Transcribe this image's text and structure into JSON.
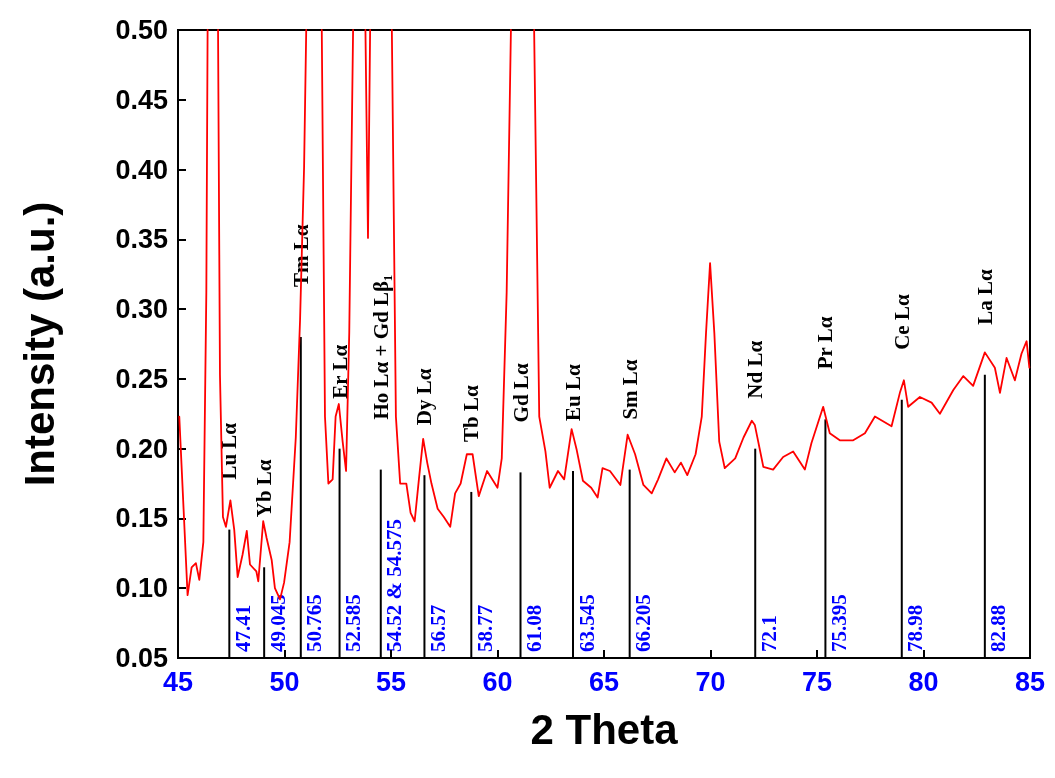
{
  "chart_data": {
    "type": "line",
    "xlabel": "2 Theta",
    "ylabel": "Intensity (a.u.)",
    "xlim": [
      45,
      85
    ],
    "xticks": [
      45,
      50,
      55,
      60,
      65,
      70,
      75,
      80,
      85
    ],
    "ylim": [
      0.05,
      0.5
    ],
    "yticks": [
      {
        "value": 0.05,
        "label": "0.05"
      },
      {
        "value": 0.1,
        "label": "0.10"
      },
      {
        "value": 0.15,
        "label": "0.15"
      },
      {
        "value": 0.2,
        "label": "0.20"
      },
      {
        "value": 0.25,
        "label": "0.25"
      },
      {
        "value": 0.3,
        "label": "0.30"
      },
      {
        "value": 0.35,
        "label": "0.35"
      },
      {
        "value": 0.4,
        "label": "0.40"
      },
      {
        "value": 0.45,
        "label": "0.45"
      },
      {
        "value": 0.5,
        "label": "0.50"
      }
    ],
    "marker": "none",
    "series": [
      {
        "color": "#ff0000",
        "x": [
          45.06,
          45.45,
          45.64,
          45.84,
          46.0,
          46.19,
          46.33,
          46.39,
          46.6,
          46.88,
          46.97,
          47.11,
          47.25,
          47.46,
          47.64,
          47.8,
          48.03,
          48.23,
          48.38,
          48.68,
          48.77,
          49.0,
          49.16,
          49.4,
          49.55,
          49.79,
          49.98,
          50.24,
          50.53,
          50.73,
          50.92,
          51.02,
          51.4,
          51.75,
          51.9,
          52.06,
          52.26,
          52.4,
          52.55,
          52.73,
          52.89,
          53.04,
          53.22,
          53.5,
          53.8,
          53.92,
          54.02,
          54.5,
          55.04,
          55.23,
          55.43,
          55.72,
          55.92,
          56.11,
          56.31,
          56.51,
          56.7,
          56.9,
          57.19,
          57.48,
          57.78,
          58.01,
          58.27,
          58.56,
          58.83,
          59.12,
          59.51,
          60.0,
          60.2,
          60.43,
          60.63,
          61.2,
          61.72,
          61.96,
          62.25,
          62.45,
          62.84,
          63.13,
          63.48,
          63.72,
          64.01,
          64.4,
          64.7,
          64.93,
          65.28,
          65.77,
          66.11,
          66.46,
          66.85,
          67.24,
          67.54,
          67.93,
          68.32,
          68.61,
          68.91,
          69.3,
          69.59,
          69.79,
          69.98,
          70.18,
          70.41,
          70.67,
          71.16,
          71.55,
          71.94,
          72.08,
          72.48,
          72.94,
          73.41,
          73.88,
          74.43,
          74.74,
          75.29,
          75.6,
          76.07,
          76.7,
          77.25,
          77.72,
          78.5,
          78.89,
          79.08,
          79.28,
          79.83,
          80.38,
          80.77,
          81.4,
          81.87,
          82.33,
          82.88,
          83.35,
          83.59,
          83.9,
          84.29,
          84.6,
          84.84,
          84.97
        ],
        "values": [
          0.223,
          0.095,
          0.115,
          0.118,
          0.106,
          0.133,
          0.312,
          0.5,
          null,
          0.5,
          0.253,
          0.151,
          0.144,
          0.163,
          0.142,
          0.108,
          0.124,
          0.141,
          0.117,
          0.112,
          0.105,
          0.148,
          0.136,
          0.12,
          0.1,
          0.092,
          0.104,
          0.133,
          0.208,
          0.292,
          0.402,
          0.5,
          null,
          0.5,
          0.223,
          0.175,
          0.178,
          0.223,
          0.232,
          0.205,
          0.184,
          0.283,
          0.5,
          null,
          0.5,
          0.351,
          0.5,
          null,
          0.5,
          0.223,
          0.175,
          0.175,
          0.154,
          0.148,
          0.178,
          0.207,
          0.19,
          0.175,
          0.157,
          0.151,
          0.144,
          0.168,
          0.175,
          0.196,
          0.196,
          0.166,
          0.184,
          0.172,
          0.193,
          0.312,
          0.5,
          null,
          0.5,
          0.223,
          0.198,
          0.172,
          0.184,
          0.178,
          0.214,
          0.199,
          0.177,
          0.172,
          0.165,
          0.186,
          0.184,
          0.174,
          0.21,
          0.196,
          0.174,
          0.168,
          0.178,
          0.193,
          0.183,
          0.19,
          0.181,
          0.196,
          0.223,
          0.283,
          0.333,
          0.283,
          0.205,
          0.186,
          0.193,
          0.208,
          0.22,
          0.217,
          0.187,
          0.185,
          0.194,
          0.198,
          0.185,
          0.204,
          0.23,
          0.211,
          0.206,
          0.206,
          0.211,
          0.223,
          0.216,
          0.24,
          0.249,
          0.23,
          0.237,
          0.233,
          0.225,
          0.242,
          0.252,
          0.245,
          0.269,
          0.258,
          0.24,
          0.265,
          0.249,
          0.268,
          0.277,
          0.258
        ]
      },
      {
        "type": "bar",
        "color": "#000000",
        "x": [
          47.41,
          49.045,
          50.765,
          52.585,
          54.52,
          56.57,
          58.77,
          61.08,
          63.545,
          66.205,
          72.1,
          75.395,
          78.98,
          82.88
        ],
        "values": [
          0.142,
          0.115,
          0.28,
          0.2,
          0.185,
          0.181,
          0.169,
          0.183,
          0.184,
          0.185,
          0.2,
          0.221,
          0.235,
          0.253
        ]
      }
    ],
    "annotations": [
      {
        "text": "Lu Lα",
        "x": 47.41,
        "y": 0.142
      },
      {
        "text": "Yb Lα",
        "x": 49.045,
        "y": 0.115
      },
      {
        "text": "Tm Lα",
        "x": 50.765,
        "y": 0.28
      },
      {
        "text": "Er Lα",
        "x": 52.585,
        "y": 0.2
      },
      {
        "text": "Ho Lα + Gd Lβ₁",
        "x": 54.52,
        "y": 0.185
      },
      {
        "text": "Dy Lα",
        "x": 56.57,
        "y": 0.181
      },
      {
        "text": "Tb Lα",
        "x": 58.77,
        "y": 0.169
      },
      {
        "text": "Gd Lα",
        "x": 61.08,
        "y": 0.183
      },
      {
        "text": "Eu Lα",
        "x": 63.545,
        "y": 0.184
      },
      {
        "text": "Sm Lα",
        "x": 66.205,
        "y": 0.185
      },
      {
        "text": "Nd Lα",
        "x": 72.1,
        "y": 0.2
      },
      {
        "text": "Pr Lα",
        "x": 75.395,
        "y": 0.221
      },
      {
        "text": "Ce Lα",
        "x": 78.98,
        "y": 0.235
      },
      {
        "text": "La Lα",
        "x": 82.88,
        "y": 0.253
      },
      {
        "text": "47.41",
        "x": 47.41,
        "y": 0.05
      },
      {
        "text": "49.045",
        "x": 49.045,
        "y": 0.05
      },
      {
        "text": "50.765",
        "x": 50.765,
        "y": 0.05
      },
      {
        "text": "52.585",
        "x": 52.585,
        "y": 0.05
      },
      {
        "text": "54.52 & 54.575",
        "x": 54.52,
        "y": 0.05
      },
      {
        "text": "56.57",
        "x": 56.57,
        "y": 0.05
      },
      {
        "text": "58.77",
        "x": 58.77,
        "y": 0.05
      },
      {
        "text": "61.08",
        "x": 61.08,
        "y": 0.05
      },
      {
        "text": "63.545",
        "x": 63.545,
        "y": 0.05
      },
      {
        "text": "66.205",
        "x": 66.205,
        "y": 0.05
      },
      {
        "text": "72.1",
        "x": 72.1,
        "y": 0.05
      },
      {
        "text": "75.395",
        "x": 75.395,
        "y": 0.05
      },
      {
        "text": "78.98",
        "x": 78.98,
        "y": 0.05
      },
      {
        "text": "82.88",
        "x": 82.88,
        "y": 0.05
      }
    ]
  }
}
